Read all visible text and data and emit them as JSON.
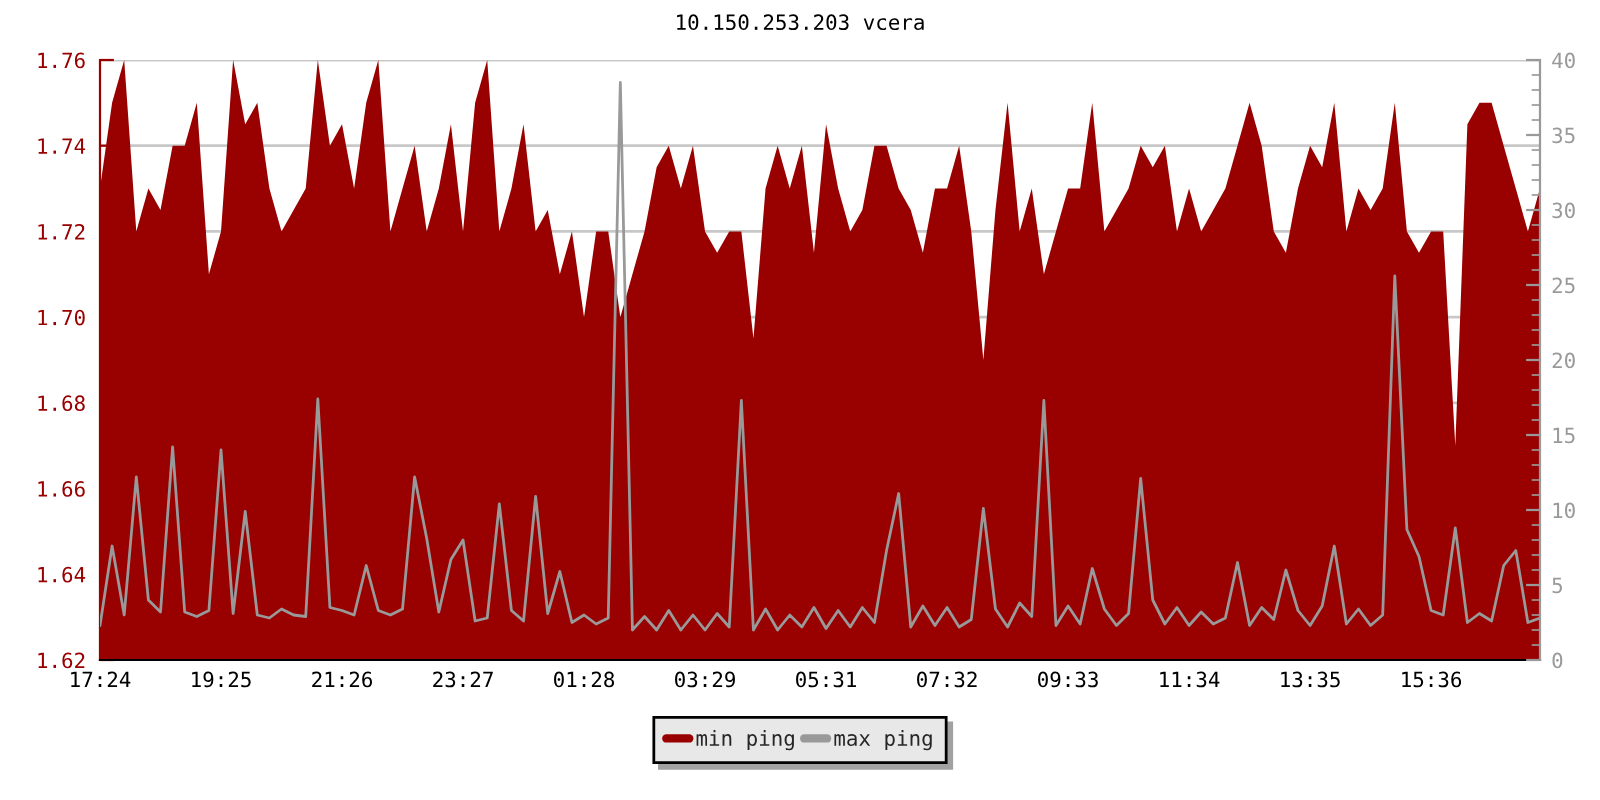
{
  "chart_data": {
    "type": "area",
    "title": "10.150.253.203 vcera",
    "categories": [
      "17:24",
      null,
      null,
      null,
      null,
      null,
      null,
      null,
      null,
      null,
      "19:25",
      null,
      null,
      null,
      null,
      null,
      null,
      null,
      null,
      null,
      "21:26",
      null,
      null,
      null,
      null,
      null,
      null,
      null,
      null,
      null,
      "23:27",
      null,
      null,
      null,
      null,
      null,
      null,
      null,
      null,
      null,
      "01:28",
      null,
      null,
      null,
      null,
      null,
      null,
      null,
      null,
      null,
      "03:29",
      null,
      null,
      null,
      null,
      null,
      null,
      null,
      null,
      null,
      "05:31",
      null,
      null,
      null,
      null,
      null,
      null,
      null,
      null,
      null,
      "07:32",
      null,
      null,
      null,
      null,
      null,
      null,
      null,
      null,
      null,
      "09:33",
      null,
      null,
      null,
      null,
      null,
      null,
      null,
      null,
      null,
      "11:34",
      null,
      null,
      null,
      null,
      null,
      null,
      null,
      null,
      null,
      "13:35",
      null,
      null,
      null,
      null,
      null,
      null,
      null,
      null,
      null,
      "15:36",
      null,
      null,
      null,
      null,
      null,
      null,
      null,
      null,
      null
    ],
    "ylim": [
      1.62,
      1.76
    ],
    "yticks": [
      1.62,
      1.64,
      1.66,
      1.68,
      {
        "value": 1.7,
        "label": "1.70"
      },
      1.72,
      1.74,
      1.76
    ],
    "y2lim": [
      0,
      40
    ],
    "y2ticks": [
      0,
      5,
      10,
      15,
      20,
      25,
      30,
      35,
      40
    ],
    "grid": "y",
    "legend": "bottom",
    "series": [
      {
        "name": "min ping",
        "color": "#990000",
        "values": [
          1.73,
          1.75,
          1.76,
          1.72,
          1.73,
          1.725,
          1.74,
          1.74,
          1.75,
          1.71,
          1.72,
          1.76,
          1.745,
          1.75,
          1.73,
          1.72,
          1.725,
          1.73,
          1.76,
          1.74,
          1.745,
          1.73,
          1.75,
          1.76,
          1.72,
          1.73,
          1.74,
          1.72,
          1.73,
          1.745,
          1.72,
          1.75,
          1.76,
          1.72,
          1.73,
          1.745,
          1.72,
          1.725,
          1.71,
          1.72,
          1.7,
          1.72,
          1.72,
          1.7,
          1.71,
          1.72,
          1.735,
          1.74,
          1.73,
          1.74,
          1.72,
          1.715,
          1.72,
          1.72,
          1.695,
          1.73,
          1.74,
          1.73,
          1.74,
          1.715,
          1.745,
          1.73,
          1.72,
          1.725,
          1.74,
          1.74,
          1.73,
          1.725,
          1.715,
          1.73,
          1.73,
          1.74,
          1.72,
          1.69,
          1.725,
          1.75,
          1.72,
          1.73,
          1.71,
          1.72,
          1.73,
          1.73,
          1.75,
          1.72,
          1.725,
          1.73,
          1.74,
          1.735,
          1.74,
          1.72,
          1.73,
          1.72,
          1.725,
          1.73,
          1.74,
          1.75,
          1.74,
          1.72,
          1.715,
          1.73,
          1.74,
          1.735,
          1.75,
          1.72,
          1.73,
          1.725,
          1.73,
          1.75,
          1.72,
          1.715,
          1.72,
          1.72,
          1.67,
          1.745,
          1.75,
          1.75,
          1.74,
          1.73,
          1.72,
          1.73
        ]
      },
      {
        "name": "max ping",
        "type": "line",
        "axis": "y2",
        "color": "#999999",
        "values": [
          2.3,
          7.6,
          3.0,
          12.2,
          4.0,
          3.2,
          14.2,
          3.2,
          2.9,
          3.3,
          14,
          3.1,
          9.9,
          3.0,
          2.8,
          3.4,
          3.0,
          2.9,
          17.4,
          3.5,
          3.3,
          3.0,
          6.3,
          3.3,
          3.0,
          3.4,
          12.2,
          8.1,
          3.2,
          6.7,
          8,
          2.6,
          2.8,
          10.4,
          3.3,
          2.6,
          10.9,
          3.1,
          5.9,
          2.5,
          3.0,
          2.4,
          2.8,
          38.5,
          2.0,
          2.9,
          2.0,
          3.3,
          2.0,
          3.0,
          2.0,
          3.1,
          2.2,
          17.3,
          2.0,
          3.4,
          2.0,
          3.0,
          2.2,
          3.5,
          2.1,
          3.3,
          2.2,
          3.5,
          2.5,
          7.3,
          11.1,
          2.2,
          3.6,
          2.3,
          3.5,
          2.2,
          2.7,
          10.1,
          3.4,
          2.2,
          3.8,
          2.9,
          17.3,
          2.3,
          3.6,
          2.4,
          6.1,
          3.4,
          2.3,
          3.1,
          12.1,
          4.0,
          2.4,
          3.5,
          2.3,
          3.2,
          2.4,
          2.8,
          6.5,
          2.3,
          3.5,
          2.7,
          6.0,
          3.3,
          2.3,
          3.6,
          7.6,
          2.4,
          3.4,
          2.3,
          3.0,
          25.6,
          8.7,
          6.9,
          3.3,
          3.0,
          8.8,
          2.5,
          3.1,
          2.6,
          6.3,
          7.3,
          2.5,
          2.8
        ]
      }
    ]
  }
}
